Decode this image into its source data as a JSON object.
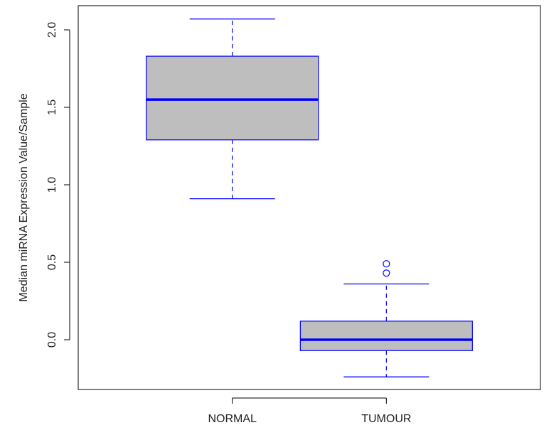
{
  "chart_data": {
    "type": "box",
    "title": "",
    "xlabel": "",
    "ylabel": "Median miRNA Expression Value/Sample",
    "ylim": [
      -0.35,
      2.15
    ],
    "yticks": [
      0.0,
      0.5,
      1.0,
      1.5,
      2.0
    ],
    "ytick_labels": [
      "0.0",
      "0.5",
      "1.0",
      "1.5",
      "2.0"
    ],
    "categories": [
      "NORMAL",
      "TUMOUR"
    ],
    "boxes": [
      {
        "category": "NORMAL",
        "whisker_low": 0.91,
        "q1": 1.29,
        "median": 1.55,
        "q3": 1.83,
        "whisker_high": 2.07,
        "outliers": []
      },
      {
        "category": "TUMOUR",
        "whisker_low": -0.24,
        "q1": -0.07,
        "median": 0.0,
        "q3": 0.12,
        "whisker_high": 0.36,
        "outliers": [
          0.43,
          0.49
        ]
      }
    ],
    "grid": false,
    "legend": "none",
    "colors": {
      "box_fill": "#bebebe",
      "box_stroke": "#0000ff",
      "median": "#0000ff",
      "whisker": "#0000ff",
      "outlier": "#0000ff",
      "axis": "#000000",
      "text": "#222222"
    }
  }
}
